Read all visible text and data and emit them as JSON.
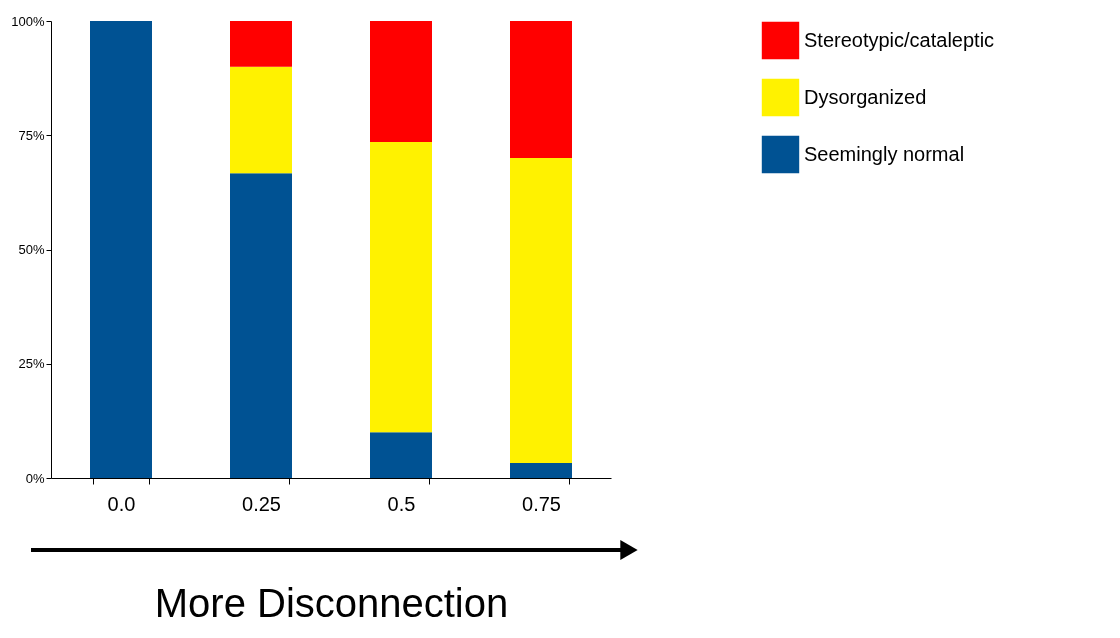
{
  "chart_data": {
    "type": "bar",
    "stacked": true,
    "xlabel": "More Disconnection",
    "categories": [
      "0.0",
      "0.25",
      "0.5",
      "0.75"
    ],
    "series": [
      {
        "name": "Seemingly normal",
        "color": "#005293",
        "values": [
          100,
          66.7,
          10,
          3.3
        ]
      },
      {
        "name": "Dysorganized",
        "color": "#fff200",
        "values": [
          0,
          23.3,
          63.5,
          66.7
        ]
      },
      {
        "name": "Stereotypic/cataleptic",
        "color": "#ff0000",
        "values": [
          0,
          10,
          26.5,
          30
        ]
      }
    ],
    "ylim": [
      0,
      100
    ],
    "yticks": [
      {
        "value": 0,
        "label": "0%"
      },
      {
        "value": 25,
        "label": "25%"
      },
      {
        "value": 50,
        "label": "50%"
      },
      {
        "value": 75,
        "label": "75%"
      },
      {
        "value": 100,
        "label": "100%"
      }
    ],
    "grid": false,
    "legend": "right"
  }
}
